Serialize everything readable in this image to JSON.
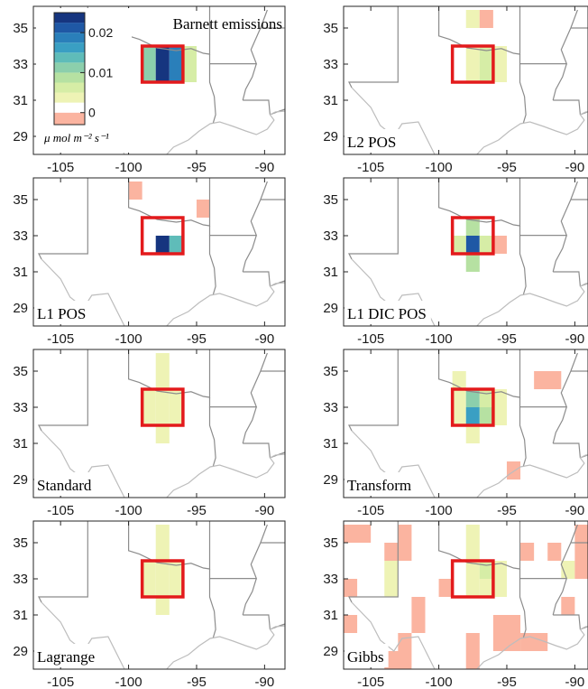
{
  "chart_data": {
    "type": "heatmap",
    "x_ticks": [
      "-105",
      "-100",
      "-95",
      "-90"
    ],
    "y_ticks": [
      "35",
      "33",
      "31",
      "29"
    ],
    "xlim": [
      -107,
      -88.5
    ],
    "ylim": [
      28,
      36.2
    ],
    "grid_cell_deg": 1,
    "box": {
      "x0": -99,
      "x1": -96,
      "y0": 32,
      "y1": 34,
      "color": "#e31a1c"
    },
    "colorbar": {
      "ticks": [
        "0.02",
        "0.01",
        "0"
      ],
      "tick_values": [
        0.02,
        0.01,
        0
      ],
      "unit": "μ mol m⁻² s⁻¹",
      "colors": [
        "#fbb4a0",
        "#ffffff",
        "#eef3b5",
        "#d6eda6",
        "#b6e1a2",
        "#8ccfac",
        "#5fbcb9",
        "#3a9fc3",
        "#2a7fba",
        "#1f58a5",
        "#16357f"
      ],
      "bounds": [
        -0.003,
        0,
        0.0025,
        0.005,
        0.0075,
        0.01,
        0.0125,
        0.015,
        0.0175,
        0.02,
        0.0225,
        0.025
      ]
    },
    "panels": [
      {
        "label": "Barnett emissions",
        "cells": [
          {
            "lon": -99,
            "lat": 32,
            "w": 1,
            "h": 2,
            "v": 0.011
          },
          {
            "lon": -98,
            "lat": 32,
            "w": 1,
            "h": 2,
            "v": 0.024
          },
          {
            "lon": -97,
            "lat": 32,
            "w": 1,
            "h": 2,
            "v": 0.019
          },
          {
            "lon": -96,
            "lat": 32,
            "w": 1,
            "h": 2,
            "v": 0.006
          }
        ]
      },
      {
        "label": "L2 POS",
        "cells": [
          {
            "lon": -98,
            "lat": 35,
            "w": 1,
            "h": 1,
            "v": 0.0035
          },
          {
            "lon": -97,
            "lat": 35,
            "w": 1,
            "h": 1,
            "v": -0.002
          },
          {
            "lon": -98,
            "lat": 32,
            "w": 1,
            "h": 2,
            "v": 0.0035
          },
          {
            "lon": -97,
            "lat": 32,
            "w": 1,
            "h": 2,
            "v": 0.006
          },
          {
            "lon": -96,
            "lat": 32,
            "w": 1,
            "h": 2,
            "v": 0.0035
          }
        ]
      },
      {
        "label": "L1 POS",
        "cells": [
          {
            "lon": -100,
            "lat": 35,
            "w": 1,
            "h": 1,
            "v": -0.002
          },
          {
            "lon": -99,
            "lat": 34,
            "w": 1,
            "h": 1,
            "v": 0.0015
          },
          {
            "lon": -95,
            "lat": 34,
            "w": 1,
            "h": 1,
            "v": -0.002
          },
          {
            "lon": -98,
            "lat": 32,
            "w": 1,
            "h": 1,
            "v": 0.025
          },
          {
            "lon": -97,
            "lat": 32,
            "w": 1,
            "h": 1,
            "v": 0.013
          }
        ]
      },
      {
        "label": "L1 DIC POS",
        "cells": [
          {
            "lon": -98,
            "lat": 33,
            "w": 1,
            "h": 1,
            "v": 0.0075
          },
          {
            "lon": -98,
            "lat": 32,
            "w": 1,
            "h": 1,
            "v": 0.021
          },
          {
            "lon": -98,
            "lat": 31,
            "w": 1,
            "h": 1,
            "v": 0.009
          },
          {
            "lon": -99,
            "lat": 32,
            "w": 1,
            "h": 1,
            "v": 0.0055
          },
          {
            "lon": -97,
            "lat": 32,
            "w": 1,
            "h": 1,
            "v": 0.0055
          },
          {
            "lon": -96,
            "lat": 32,
            "w": 1,
            "h": 1,
            "v": -0.002
          }
        ]
      },
      {
        "label": "Standard",
        "cells": [
          {
            "lon": -98,
            "lat": 31,
            "w": 1,
            "h": 5,
            "v": 0.0035
          },
          {
            "lon": -99,
            "lat": 32,
            "w": 1,
            "h": 2,
            "v": 0.0035
          },
          {
            "lon": -97,
            "lat": 32,
            "w": 1,
            "h": 2,
            "v": 0.0035
          }
        ]
      },
      {
        "label": "Transform",
        "cells": [
          {
            "lon": -99,
            "lat": 32,
            "w": 1,
            "h": 3,
            "v": 0.0035
          },
          {
            "lon": -98,
            "lat": 31,
            "w": 1,
            "h": 1,
            "v": 0.0035
          },
          {
            "lon": -98,
            "lat": 33,
            "w": 1,
            "h": 1,
            "v": 0.012
          },
          {
            "lon": -98,
            "lat": 32,
            "w": 1,
            "h": 1,
            "v": 0.017
          },
          {
            "lon": -97,
            "lat": 33,
            "w": 1,
            "h": 1,
            "v": 0.006
          },
          {
            "lon": -97,
            "lat": 32,
            "w": 1,
            "h": 1,
            "v": 0.0075
          },
          {
            "lon": -96,
            "lat": 32,
            "w": 1,
            "h": 2,
            "v": 0.0035
          },
          {
            "lon": -93,
            "lat": 34,
            "w": 2,
            "h": 1,
            "v": -0.002
          },
          {
            "lon": -95,
            "lat": 29,
            "w": 1,
            "h": 1,
            "v": -0.002
          }
        ]
      },
      {
        "label": "Lagrange",
        "cells": [
          {
            "lon": -98,
            "lat": 31,
            "w": 1,
            "h": 5,
            "v": 0.0035
          },
          {
            "lon": -99,
            "lat": 32,
            "w": 1,
            "h": 2,
            "v": 0.0035
          },
          {
            "lon": -97,
            "lat": 32,
            "w": 1,
            "h": 2,
            "v": 0.0035
          }
        ]
      },
      {
        "label": "Gibbs",
        "cells": [
          {
            "lon": -107,
            "lat": 35,
            "w": 2,
            "h": 1,
            "v": -0.002
          },
          {
            "lon": -103,
            "lat": 35,
            "w": 1,
            "h": 1,
            "v": -0.002
          },
          {
            "lon": -104,
            "lat": 34,
            "w": 2,
            "h": 1,
            "v": -0.002
          },
          {
            "lon": -104,
            "lat": 33,
            "w": 1,
            "h": 1,
            "v": 0.0035
          },
          {
            "lon": -104,
            "lat": 32,
            "w": 1,
            "h": 1,
            "v": 0.0035
          },
          {
            "lon": -107,
            "lat": 32,
            "w": 1,
            "h": 1,
            "v": -0.002
          },
          {
            "lon": -102,
            "lat": 31,
            "w": 1,
            "h": 1,
            "v": -0.002
          },
          {
            "lon": -102,
            "lat": 30,
            "w": 1,
            "h": 1,
            "v": -0.002
          },
          {
            "lon": -107,
            "lat": 30,
            "w": 1,
            "h": 1,
            "v": -0.002
          },
          {
            "lon": -103,
            "lat": 29,
            "w": 1,
            "h": 1,
            "v": -0.002
          },
          {
            "lon": -104,
            "lat": 28,
            "w": 2,
            "h": 1,
            "v": -0.002
          },
          {
            "lon": -100,
            "lat": 32,
            "w": 1,
            "h": 1,
            "v": -0.002
          },
          {
            "lon": -98,
            "lat": 35,
            "w": 1,
            "h": 1,
            "v": 0.0035
          },
          {
            "lon": -98,
            "lat": 32,
            "w": 1,
            "h": 3,
            "v": 0.0035
          },
          {
            "lon": -97,
            "lat": 33,
            "w": 1,
            "h": 1,
            "v": 0.006
          },
          {
            "lon": -97,
            "lat": 32,
            "w": 1,
            "h": 1,
            "v": 0.0035
          },
          {
            "lon": -96,
            "lat": 32,
            "w": 1,
            "h": 2,
            "v": 0.0035
          },
          {
            "lon": -94,
            "lat": 34,
            "w": 1,
            "h": 1,
            "v": -0.002
          },
          {
            "lon": -92,
            "lat": 34,
            "w": 1,
            "h": 1,
            "v": -0.002
          },
          {
            "lon": -91,
            "lat": 33,
            "w": 1,
            "h": 1,
            "v": 0.0035
          },
          {
            "lon": -90,
            "lat": 35,
            "w": 1,
            "h": 1,
            "v": -0.002
          },
          {
            "lon": -90,
            "lat": 33,
            "w": 1,
            "h": 2,
            "v": -0.002
          },
          {
            "lon": -91,
            "lat": 31,
            "w": 1,
            "h": 1,
            "v": -0.002
          },
          {
            "lon": -96,
            "lat": 29,
            "w": 2,
            "h": 2,
            "v": -0.002
          },
          {
            "lon": -98,
            "lat": 28,
            "w": 1,
            "h": 2,
            "v": -0.002
          },
          {
            "lon": -94,
            "lat": 29,
            "w": 2,
            "h": 1,
            "v": -0.002
          },
          {
            "lon": -89,
            "lat": 29,
            "w": 1,
            "h": 1,
            "v": -0.002
          }
        ]
      }
    ]
  }
}
